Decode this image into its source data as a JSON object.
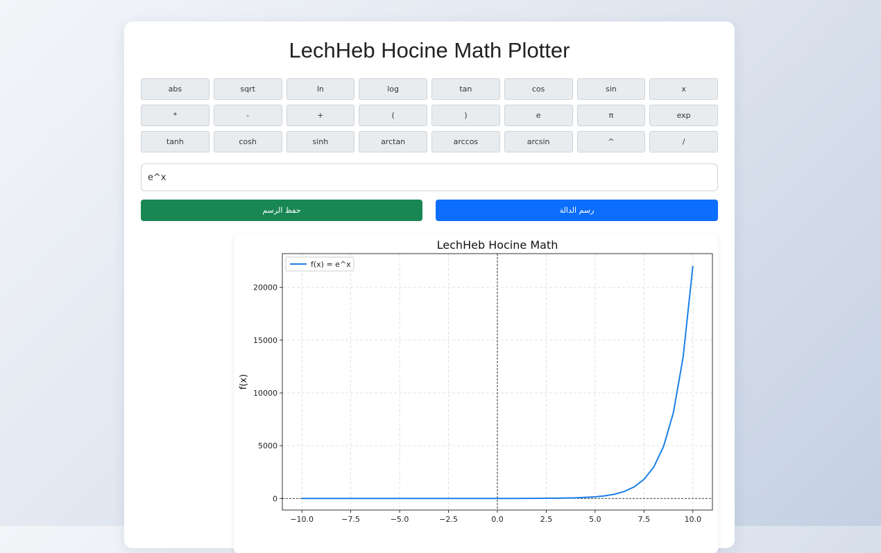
{
  "app": {
    "title": "LechHeb Hocine Math Plotter"
  },
  "keypad": {
    "rows": [
      [
        "abs",
        "sqrt",
        "ln",
        "log",
        "tan",
        "cos",
        "sin",
        "x"
      ],
      [
        "*",
        "-",
        "+",
        "(",
        ")",
        "e",
        "π",
        "exp"
      ],
      [
        "tanh",
        "cosh",
        "sinh",
        "arctan",
        "arccos",
        "arcsin",
        "^",
        "/"
      ]
    ]
  },
  "expression": {
    "value": "e^x",
    "placeholder": ""
  },
  "actions": {
    "save_label": "حفظ الرسم",
    "plot_label": "رسم الدالة"
  },
  "colors": {
    "save": "#198754",
    "plot": "#0d6efd",
    "series": "#1a7fe6"
  },
  "chart_data": {
    "type": "line",
    "title": "LechHeb Hocine Math",
    "xlabel": "",
    "ylabel": "f(x)",
    "function": "e^x",
    "xlim": [
      -11,
      11
    ],
    "ylim": [
      -1100,
      23200
    ],
    "x_ticks": [
      -10,
      -7.5,
      -5,
      -2.5,
      0,
      2.5,
      5,
      7.5,
      10
    ],
    "x_tick_labels": [
      "−10.0",
      "−7.5",
      "−5.0",
      "−2.5",
      "0.0",
      "2.5",
      "5.0",
      "7.5",
      "10.0"
    ],
    "y_ticks": [
      0,
      5000,
      10000,
      15000,
      20000
    ],
    "y_tick_labels": [
      "0",
      "5000",
      "10000",
      "15000",
      "20000"
    ],
    "grid": true,
    "legend_position": "top-left",
    "series": [
      {
        "name": "f(x) = e^x",
        "x": [
          -10,
          -8,
          -6,
          -4,
          -2,
          0,
          1,
          2,
          3,
          4,
          5,
          5.5,
          6,
          6.5,
          7,
          7.5,
          8,
          8.5,
          9,
          9.5,
          10
        ],
        "y": [
          0,
          0,
          0,
          0.02,
          0.14,
          1,
          2.7,
          7.4,
          20,
          55,
          148,
          245,
          403,
          665,
          1097,
          1808,
          2981,
          4915,
          8103,
          13360,
          22026
        ]
      }
    ]
  }
}
